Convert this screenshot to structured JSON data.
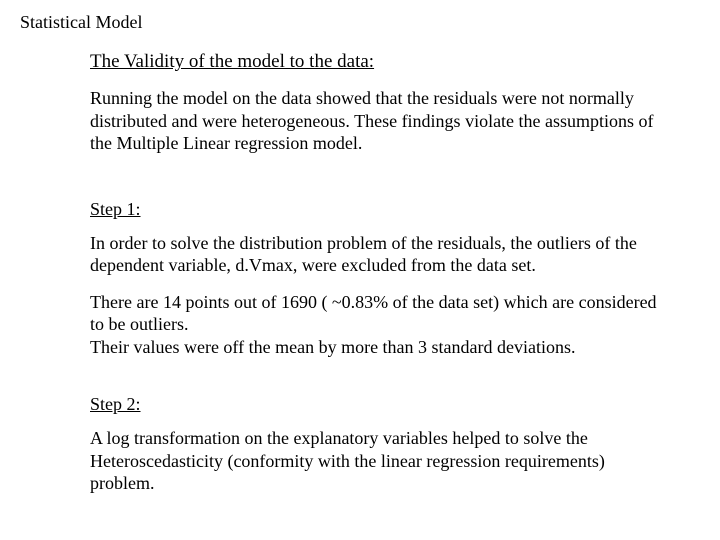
{
  "title": "Statistical Model",
  "heading": "The Validity of the model to the data:",
  "intro": "Running the model on the data showed that the residuals were not normally distributed and were heterogeneous. These findings violate the assumptions of the Multiple Linear regression model.",
  "step1_label": "Step 1:",
  "step1_p1": "In order to solve the distribution problem of the residuals, the outliers of the dependent variable, d.Vmax, were excluded from the data set.",
  "step1_p2a": "There are 14 points out of 1690 ( ~0.83% of the data set) which are considered to be outliers.",
  "step1_p2b": "Their values were off the mean by more than 3 standard deviations.",
  "step2_label": "Step 2:",
  "step2_p1": "A log transformation on the explanatory variables helped to solve the Heteroscedasticity (conformity with the linear regression requirements) problem."
}
